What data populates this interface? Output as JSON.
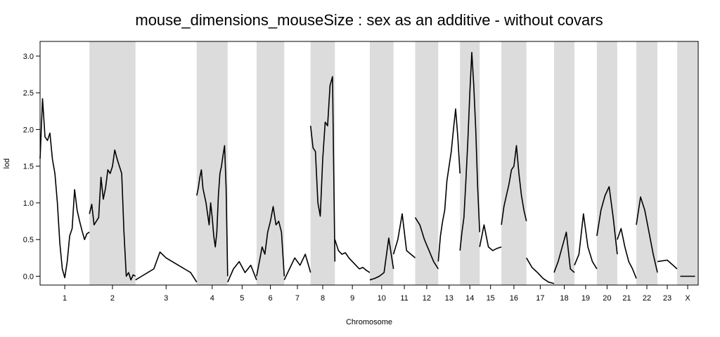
{
  "chart_data": {
    "type": "line",
    "title": "mouse_dimensions_mouseSize : sex as an additive - without covars",
    "xlabel": "Chromosome",
    "ylabel": "lod",
    "ylim": [
      -0.12,
      3.2
    ],
    "yticks": [
      "0.0",
      "0.5",
      "1.0",
      "1.5",
      "2.0",
      "2.5",
      "3.0"
    ],
    "ytick_values": [
      0,
      0.5,
      1.0,
      1.5,
      2.0,
      2.5,
      3.0
    ],
    "grid": false,
    "band_colors": [
      "#ffffff",
      "#dcdcdc"
    ],
    "line_color": "#000000",
    "chromosomes": [
      {
        "name": "1",
        "span": [
          0.0,
          0.075
        ],
        "shaded": false,
        "x": [
          0.0,
          0.05,
          0.1,
          0.15,
          0.2,
          0.25,
          0.3,
          0.35,
          0.4,
          0.45,
          0.5,
          0.55,
          0.6,
          0.65,
          0.7,
          0.75,
          0.8,
          0.85,
          0.9,
          0.95,
          1.0
        ],
        "lod": [
          1.6,
          2.42,
          1.9,
          1.85,
          1.95,
          1.6,
          1.4,
          1.0,
          0.45,
          0.1,
          -0.02,
          0.2,
          0.55,
          0.65,
          1.18,
          0.9,
          0.75,
          0.62,
          0.5,
          0.58,
          0.6
        ]
      },
      {
        "name": "2",
        "span": [
          0.075,
          0.145
        ],
        "shaded": true,
        "x": [
          0.0,
          0.05,
          0.1,
          0.15,
          0.2,
          0.25,
          0.3,
          0.35,
          0.4,
          0.45,
          0.5,
          0.55,
          0.6,
          0.65,
          0.7,
          0.75,
          0.8,
          0.85,
          0.9,
          0.95,
          1.0
        ],
        "lod": [
          0.85,
          0.98,
          0.7,
          0.75,
          0.8,
          1.35,
          1.05,
          1.2,
          1.45,
          1.4,
          1.5,
          1.72,
          1.6,
          1.5,
          1.4,
          0.6,
          0.0,
          0.05,
          -0.05,
          0.02,
          0.0
        ]
      },
      {
        "name": "3",
        "span": [
          0.145,
          0.238
        ],
        "shaded": false,
        "x": [
          0.0,
          0.1,
          0.2,
          0.3,
          0.4,
          0.5,
          0.6,
          0.7,
          0.8,
          0.9,
          1.0
        ],
        "lod": [
          -0.05,
          0.0,
          0.05,
          0.1,
          0.33,
          0.25,
          0.2,
          0.15,
          0.1,
          0.05,
          -0.08
        ]
      },
      {
        "name": "4",
        "span": [
          0.238,
          0.285
        ],
        "shaded": true,
        "x": [
          0.0,
          0.05,
          0.1,
          0.15,
          0.2,
          0.25,
          0.3,
          0.35,
          0.4,
          0.45,
          0.5,
          0.55,
          0.6,
          0.65,
          0.7,
          0.75,
          0.8,
          0.85,
          0.9,
          0.95,
          1.0
        ],
        "lod": [
          1.1,
          1.2,
          1.35,
          1.45,
          1.2,
          1.1,
          1.0,
          0.85,
          0.7,
          1.0,
          0.8,
          0.55,
          0.4,
          0.6,
          1.1,
          1.4,
          1.5,
          1.65,
          1.78,
          1.2,
          0.0
        ]
      },
      {
        "name": "5",
        "span": [
          0.285,
          0.329
        ],
        "shaded": false,
        "x": [
          0.0,
          0.2,
          0.4,
          0.6,
          0.8,
          1.0
        ],
        "lod": [
          -0.08,
          0.1,
          0.2,
          0.05,
          0.15,
          -0.05
        ]
      },
      {
        "name": "6",
        "span": [
          0.329,
          0.371
        ],
        "shaded": true,
        "x": [
          0.0,
          0.1,
          0.2,
          0.3,
          0.4,
          0.5,
          0.6,
          0.7,
          0.8,
          0.9,
          1.0
        ],
        "lod": [
          0.0,
          0.2,
          0.4,
          0.3,
          0.6,
          0.75,
          0.95,
          0.7,
          0.75,
          0.6,
          0.0
        ]
      },
      {
        "name": "7",
        "span": [
          0.371,
          0.411
        ],
        "shaded": false,
        "x": [
          0.0,
          0.2,
          0.4,
          0.6,
          0.8,
          1.0
        ],
        "lod": [
          -0.05,
          0.1,
          0.25,
          0.15,
          0.3,
          0.05
        ]
      },
      {
        "name": "8",
        "span": [
          0.411,
          0.448
        ],
        "shaded": true,
        "x": [
          0.0,
          0.1,
          0.2,
          0.3,
          0.4,
          0.5,
          0.6,
          0.7,
          0.8,
          0.9,
          1.0
        ],
        "lod": [
          2.05,
          1.75,
          1.7,
          1.0,
          0.82,
          1.6,
          2.1,
          2.05,
          2.6,
          2.72,
          0.2
        ]
      },
      {
        "name": "9",
        "span": [
          0.448,
          0.501
        ],
        "shaded": false,
        "x": [
          0.0,
          0.1,
          0.2,
          0.3,
          0.4,
          0.5,
          0.6,
          0.7,
          0.8,
          0.9,
          1.0
        ],
        "lod": [
          0.5,
          0.35,
          0.3,
          0.32,
          0.25,
          0.2,
          0.15,
          0.1,
          0.12,
          0.08,
          0.05
        ]
      },
      {
        "name": "10",
        "span": [
          0.501,
          0.537
        ],
        "shaded": true,
        "x": [
          0.0,
          0.2,
          0.4,
          0.6,
          0.8,
          1.0
        ],
        "lod": [
          -0.05,
          -0.03,
          0.0,
          0.05,
          0.52,
          0.1
        ]
      },
      {
        "name": "11",
        "span": [
          0.537,
          0.57
        ],
        "shaded": false,
        "x": [
          0.0,
          0.2,
          0.4,
          0.6,
          0.8,
          1.0
        ],
        "lod": [
          0.3,
          0.5,
          0.85,
          0.35,
          0.3,
          0.25
        ]
      },
      {
        "name": "12",
        "span": [
          0.57,
          0.605
        ],
        "shaded": true,
        "x": [
          0.0,
          0.2,
          0.4,
          0.6,
          0.8,
          1.0
        ],
        "lod": [
          0.8,
          0.7,
          0.5,
          0.35,
          0.2,
          0.1
        ]
      },
      {
        "name": "13",
        "span": [
          0.605,
          0.638
        ],
        "shaded": false,
        "x": [
          0.0,
          0.1,
          0.2,
          0.3,
          0.4,
          0.5,
          0.6,
          0.7,
          0.8,
          0.9,
          1.0
        ],
        "lod": [
          0.2,
          0.55,
          0.75,
          0.9,
          1.3,
          1.5,
          1.7,
          2.0,
          2.28,
          1.9,
          1.4
        ]
      },
      {
        "name": "14",
        "span": [
          0.638,
          0.668
        ],
        "shaded": true,
        "x": [
          0.0,
          0.1,
          0.2,
          0.3,
          0.4,
          0.5,
          0.6,
          0.7,
          0.8,
          0.9,
          1.0
        ],
        "lod": [
          0.35,
          0.6,
          0.8,
          1.3,
          1.85,
          2.5,
          3.05,
          2.6,
          2.0,
          1.2,
          0.6
        ]
      },
      {
        "name": "15",
        "span": [
          0.668,
          0.701
        ],
        "shaded": false,
        "x": [
          0.0,
          0.2,
          0.4,
          0.6,
          0.8,
          1.0
        ],
        "lod": [
          0.4,
          0.7,
          0.4,
          0.35,
          0.38,
          0.4
        ]
      },
      {
        "name": "16",
        "span": [
          0.701,
          0.739
        ],
        "shaded": true,
        "x": [
          0.0,
          0.1,
          0.2,
          0.3,
          0.4,
          0.5,
          0.6,
          0.7,
          0.8,
          0.9,
          1.0
        ],
        "lod": [
          0.7,
          0.95,
          1.1,
          1.25,
          1.45,
          1.5,
          1.78,
          1.4,
          1.1,
          0.9,
          0.75
        ]
      },
      {
        "name": "17",
        "span": [
          0.739,
          0.781
        ],
        "shaded": false,
        "x": [
          0.0,
          0.2,
          0.4,
          0.6,
          0.8,
          1.0
        ],
        "lod": [
          0.25,
          0.12,
          0.05,
          -0.03,
          -0.08,
          -0.1
        ]
      },
      {
        "name": "18",
        "span": [
          0.781,
          0.812
        ],
        "shaded": true,
        "x": [
          0.0,
          0.2,
          0.4,
          0.6,
          0.8,
          1.0
        ],
        "lod": [
          0.05,
          0.2,
          0.4,
          0.6,
          0.1,
          0.05
        ]
      },
      {
        "name": "19",
        "span": [
          0.812,
          0.846
        ],
        "shaded": false,
        "x": [
          0.0,
          0.2,
          0.4,
          0.6,
          0.8,
          1.0
        ],
        "lod": [
          0.15,
          0.3,
          0.85,
          0.4,
          0.2,
          0.1
        ]
      },
      {
        "name": "20",
        "span": [
          0.846,
          0.877
        ],
        "shaded": true,
        "x": [
          0.0,
          0.2,
          0.4,
          0.6,
          0.8,
          1.0
        ],
        "lod": [
          0.55,
          0.9,
          1.1,
          1.22,
          0.8,
          0.3
        ]
      },
      {
        "name": "21",
        "span": [
          0.877,
          0.906
        ],
        "shaded": false,
        "x": [
          0.0,
          0.2,
          0.4,
          0.6,
          0.8,
          1.0
        ],
        "lod": [
          0.5,
          0.65,
          0.4,
          0.2,
          0.1,
          -0.03
        ]
      },
      {
        "name": "22",
        "span": [
          0.906,
          0.938
        ],
        "shaded": true,
        "x": [
          0.0,
          0.2,
          0.4,
          0.6,
          0.8,
          1.0
        ],
        "lod": [
          0.7,
          1.08,
          0.9,
          0.6,
          0.3,
          0.05
        ]
      },
      {
        "name": "23",
        "span": [
          0.938,
          0.968
        ],
        "shaded": false,
        "x": [
          0.0,
          0.5,
          1.0
        ],
        "lod": [
          0.2,
          0.22,
          0.1
        ]
      },
      {
        "name": "X",
        "span": [
          0.968,
          1.0
        ],
        "shaded": true,
        "x": [
          0.15,
          0.85
        ],
        "lod": [
          0.0,
          0.0
        ]
      }
    ]
  }
}
